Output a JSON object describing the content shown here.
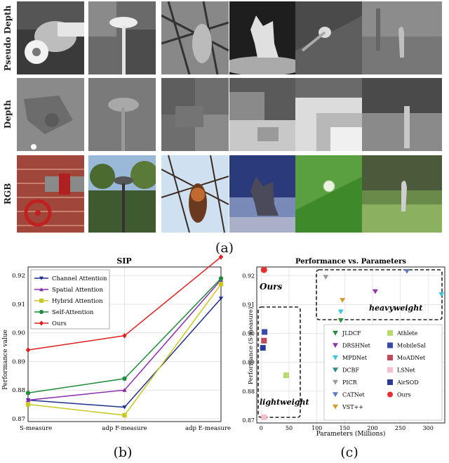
{
  "figure": {
    "row_labels": [
      "Pseudo Depth",
      "Depth",
      "RGB"
    ],
    "panel_labels": {
      "a": "(a)",
      "b": "(b)",
      "c": "(c)"
    }
  },
  "chart_data": [
    {
      "type": "line",
      "title": "SIP",
      "xlabel": "",
      "ylabel": "Performance value",
      "categories": [
        "S-measure",
        "adp F-measure",
        "adp E-measure"
      ],
      "ylim": [
        0.869,
        0.923
      ],
      "yticks": [
        "0.87",
        "0.88",
        "0.89",
        "0.90",
        "0.91",
        "0.92"
      ],
      "legend_position": "top-left",
      "grid": true,
      "series": [
        {
          "name": "Channel Attention",
          "color": "#1f2f8f",
          "marker": "triangle-down",
          "values": [
            0.8765,
            0.874,
            0.912
          ]
        },
        {
          "name": "Spatial Attention",
          "color": "#8a2bb0",
          "marker": "triangle-up",
          "values": [
            0.8765,
            0.88,
            0.9185
          ]
        },
        {
          "name": "Hybrid Attention",
          "color": "#c8c820",
          "marker": "square",
          "values": [
            0.875,
            0.8712,
            0.917
          ]
        },
        {
          "name": "Self-Attention",
          "color": "#1f8a3a",
          "marker": "circle",
          "values": [
            0.879,
            0.884,
            0.919
          ]
        },
        {
          "name": "Ours",
          "color": "#e02020",
          "marker": "diamond",
          "values": [
            0.894,
            0.899,
            0.9265
          ]
        }
      ]
    },
    {
      "type": "scatter",
      "title": "Performance vs. Parameters",
      "xlabel": "Parameters (Millions)",
      "ylabel": "Performance (S-measure)",
      "xlim": [
        -8,
        330
      ],
      "ylim": [
        0.869,
        0.923
      ],
      "xticks": [
        "0",
        "50",
        "100",
        "150",
        "200",
        "250",
        "300"
      ],
      "yticks": [
        "0.87",
        "0.88",
        "0.89",
        "0.90",
        "0.91",
        "0.92"
      ],
      "annotations": [
        "Ours",
        "lightweight",
        "heavyweight"
      ],
      "series": [
        {
          "name": "JLDCF",
          "color": "#2e8b3a",
          "marker": "triangle-down",
          "points": [
            [
              143,
              0.9045
            ]
          ]
        },
        {
          "name": "DRSHNet",
          "color": "#8a3aa8",
          "marker": "triangle-down",
          "points": [
            [
              205,
              0.9145
            ]
          ]
        },
        {
          "name": "MPDNet",
          "color": "#3ac8d8",
          "marker": "triangle-down",
          "points": [
            [
              143,
              0.9075
            ],
            [
              324,
              0.9135
            ]
          ]
        },
        {
          "name": "DCBF",
          "color": "#2a8a8a",
          "marker": "triangle-down",
          "points": []
        },
        {
          "name": "PICR",
          "color": "#9a9a9a",
          "marker": "triangle-down",
          "points": [
            [
              116,
              0.9195
            ]
          ]
        },
        {
          "name": "CATNet",
          "color": "#5a78c8",
          "marker": "triangle-down",
          "points": [
            [
              262,
              0.9215
            ]
          ]
        },
        {
          "name": "VST++",
          "color": "#d89a2a",
          "marker": "triangle-down",
          "points": [
            [
              146,
              0.9115
            ]
          ]
        },
        {
          "name": "Athlete",
          "color": "#b8d870",
          "marker": "square",
          "points": [
            [
              45,
              0.8855
            ]
          ]
        },
        {
          "name": "MobileSal",
          "color": "#3a4aa8",
          "marker": "square",
          "points": [
            [
              6,
              0.9005
            ]
          ]
        },
        {
          "name": "MoADNet",
          "color": "#c04a5a",
          "marker": "square",
          "points": [
            [
              5,
              0.8975
            ]
          ]
        },
        {
          "name": "LSNet",
          "color": "#f4c0cc",
          "marker": "square",
          "points": [
            [
              5,
              0.871
            ]
          ]
        },
        {
          "name": "AirSOD",
          "color": "#2a3a9a",
          "marker": "square",
          "points": [
            [
              3,
              0.895
            ]
          ]
        },
        {
          "name": "Ours",
          "color": "#e83030",
          "marker": "circle",
          "points": [
            [
              5,
              0.922
            ]
          ]
        }
      ]
    }
  ]
}
